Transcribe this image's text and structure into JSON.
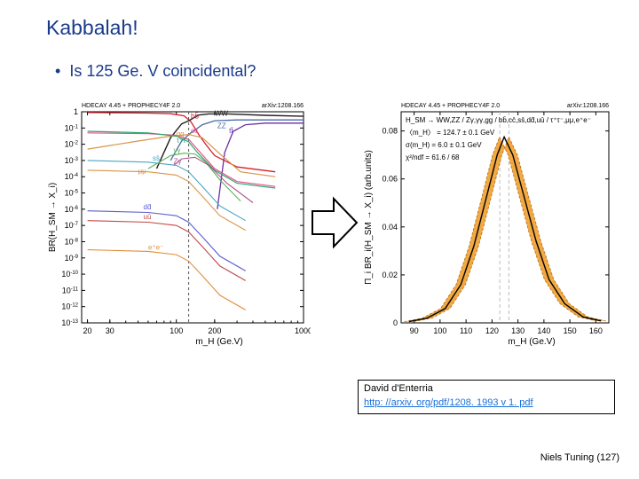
{
  "slide": {
    "title": "Kabbalah!",
    "bullet": "Is 125 Ge. V coincidental?",
    "footer_author": "Niels Tuning",
    "footer_page": "(127)"
  },
  "citation": {
    "name": "David d'Enterria",
    "link": "http: //arxiv. org/pdf/1208. 1993 v 1. pdf"
  },
  "left_chart": {
    "type": "line-log-log",
    "header_left": "HDECAY 4.45 + PROPHECY4F 2.0",
    "header_right": "arXiv:1208.166",
    "x_label": "m_H (Ge.V)",
    "y_label": "BR(H_SM → X_i)",
    "x_ticks": [
      20,
      30,
      100,
      200,
      1000
    ],
    "y_exp_ticks": [
      -13,
      -12,
      -11,
      -10,
      -9,
      -8,
      -7,
      -6,
      -5,
      -4,
      -3,
      -2,
      -1,
      0
    ],
    "xlim": [
      18,
      1000
    ],
    "ylim_exp": [
      -13,
      0
    ],
    "vline_dashed_x": 125,
    "series_labels": [
      {
        "label": "bb̄",
        "color": "#d81e2c",
        "x": 130,
        "y_exp": -0.4
      },
      {
        "label": "WW",
        "color": "#222222",
        "x": 200,
        "y_exp": -0.25
      },
      {
        "label": "tt̄",
        "color": "#6a2fa3",
        "x": 260,
        "y_exp": -1.3
      },
      {
        "label": "ZZ",
        "color": "#4a6aa8",
        "x": 210,
        "y_exp": -1.0
      },
      {
        "label": "cc̄",
        "color": "#e4508f",
        "x": 130,
        "y_exp": -1.3
      },
      {
        "label": "gg",
        "color": "#d8954a",
        "x": 100,
        "y_exp": -1.5
      },
      {
        "label": "τ⁺τ⁻",
        "color": "#2aa86a",
        "x": 100,
        "y_exp": -1.9
      },
      {
        "label": "ss̄",
        "color": "#4aa6c0",
        "x": 65,
        "y_exp": -3.0
      },
      {
        "label": "γγ",
        "color": "#59b259",
        "x": 95,
        "y_exp": -2.5
      },
      {
        "label": "μμ",
        "color": "#d8954a",
        "x": 50,
        "y_exp": -3.8
      },
      {
        "label": "Zγ",
        "color": "#aa5590",
        "x": 95,
        "y_exp": -3.2
      },
      {
        "label": "dd̄",
        "color": "#5c5cd0",
        "x": 55,
        "y_exp": -6.0
      },
      {
        "label": "uū",
        "color": "#c04a4a",
        "x": 55,
        "y_exp": -6.6
      },
      {
        "label": "e⁺e⁻",
        "color": "#e08f3a",
        "x": 60,
        "y_exp": -8.5
      }
    ],
    "series": [
      {
        "color": "#d81e2c",
        "width": 1.3,
        "pts": [
          [
            20,
            -0.05
          ],
          [
            60,
            -0.08
          ],
          [
            90,
            -0.12
          ],
          [
            115,
            -0.25
          ],
          [
            130,
            -0.6
          ],
          [
            150,
            -1.4
          ],
          [
            170,
            -2.0
          ],
          [
            200,
            -2.7
          ],
          [
            300,
            -3.4
          ],
          [
            600,
            -3.7
          ]
        ]
      },
      {
        "color": "#222222",
        "width": 1.4,
        "pts": [
          [
            70,
            -3.5
          ],
          [
            90,
            -1.6
          ],
          [
            110,
            -0.75
          ],
          [
            125,
            -0.55
          ],
          [
            150,
            -0.2
          ],
          [
            180,
            -0.13
          ],
          [
            250,
            -0.13
          ],
          [
            500,
            -0.22
          ],
          [
            1000,
            -0.28
          ]
        ]
      },
      {
        "color": "#4a6aa8",
        "width": 1.3,
        "pts": [
          [
            90,
            -3.0
          ],
          [
            110,
            -1.8
          ],
          [
            130,
            -1.3
          ],
          [
            160,
            -0.8
          ],
          [
            200,
            -0.55
          ],
          [
            300,
            -0.5
          ],
          [
            600,
            -0.5
          ],
          [
            1000,
            -0.5
          ]
        ]
      },
      {
        "color": "#6a2fa3",
        "width": 1.3,
        "pts": [
          [
            210,
            -6.0
          ],
          [
            240,
            -2.5
          ],
          [
            280,
            -1.2
          ],
          [
            350,
            -0.8
          ],
          [
            500,
            -0.7
          ],
          [
            1000,
            -0.7
          ]
        ]
      },
      {
        "color": "#e4508f",
        "width": 1.2,
        "pts": [
          [
            20,
            -1.3
          ],
          [
            60,
            -1.35
          ],
          [
            100,
            -1.45
          ],
          [
            125,
            -1.7
          ],
          [
            150,
            -2.4
          ],
          [
            200,
            -3.5
          ],
          [
            300,
            -4.3
          ],
          [
            600,
            -4.6
          ]
        ]
      },
      {
        "color": "#d8954a",
        "width": 1.2,
        "pts": [
          [
            20,
            -2.3
          ],
          [
            50,
            -1.8
          ],
          [
            90,
            -1.5
          ],
          [
            125,
            -1.4
          ],
          [
            160,
            -1.6
          ],
          [
            220,
            -2.6
          ],
          [
            320,
            -3.7
          ],
          [
            600,
            -4.0
          ]
        ]
      },
      {
        "color": "#2aa86a",
        "width": 1.2,
        "pts": [
          [
            20,
            -1.2
          ],
          [
            60,
            -1.3
          ],
          [
            100,
            -1.5
          ],
          [
            125,
            -1.85
          ],
          [
            150,
            -2.6
          ],
          [
            200,
            -3.6
          ],
          [
            300,
            -4.4
          ],
          [
            600,
            -4.7
          ]
        ]
      },
      {
        "color": "#59b259",
        "width": 1.1,
        "pts": [
          [
            60,
            -3.5
          ],
          [
            90,
            -2.7
          ],
          [
            115,
            -2.55
          ],
          [
            140,
            -2.6
          ],
          [
            170,
            -3.1
          ],
          [
            220,
            -4.2
          ],
          [
            320,
            -5.5
          ]
        ]
      },
      {
        "color": "#aa5590",
        "width": 1.1,
        "pts": [
          [
            95,
            -3.3
          ],
          [
            110,
            -2.9
          ],
          [
            140,
            -2.8
          ],
          [
            180,
            -3.3
          ],
          [
            250,
            -4.4
          ],
          [
            400,
            -5.6
          ]
        ]
      },
      {
        "color": "#4aa6c0",
        "width": 1.1,
        "pts": [
          [
            20,
            -3.0
          ],
          [
            60,
            -3.1
          ],
          [
            100,
            -3.3
          ],
          [
            125,
            -3.7
          ],
          [
            160,
            -4.6
          ],
          [
            220,
            -5.8
          ],
          [
            350,
            -6.7
          ]
        ]
      },
      {
        "color": "#d8954a",
        "width": 1.1,
        "pts": [
          [
            20,
            -3.6
          ],
          [
            60,
            -3.7
          ],
          [
            100,
            -3.9
          ],
          [
            125,
            -4.3
          ],
          [
            160,
            -5.2
          ],
          [
            220,
            -6.4
          ],
          [
            350,
            -7.3
          ]
        ]
      },
      {
        "color": "#5c5cd0",
        "width": 1.1,
        "pts": [
          [
            20,
            -6.1
          ],
          [
            60,
            -6.2
          ],
          [
            100,
            -6.4
          ],
          [
            125,
            -6.8
          ],
          [
            160,
            -7.7
          ],
          [
            220,
            -8.9
          ],
          [
            350,
            -9.8
          ]
        ]
      },
      {
        "color": "#c04a4a",
        "width": 1.1,
        "pts": [
          [
            20,
            -6.7
          ],
          [
            60,
            -6.8
          ],
          [
            100,
            -7.0
          ],
          [
            125,
            -7.4
          ],
          [
            160,
            -8.3
          ],
          [
            220,
            -9.5
          ],
          [
            350,
            -10.4
          ]
        ]
      },
      {
        "color": "#e08f3a",
        "width": 1.1,
        "pts": [
          [
            20,
            -8.5
          ],
          [
            60,
            -8.6
          ],
          [
            100,
            -8.8
          ],
          [
            125,
            -9.2
          ],
          [
            160,
            -10.1
          ],
          [
            220,
            -11.3
          ],
          [
            350,
            -12.2
          ]
        ]
      }
    ],
    "plot_bg": "#ffffff",
    "axis_color": "#000000"
  },
  "right_chart": {
    "type": "line",
    "header_left": "HDECAY 4.45 + PROPHECY4F 2.0",
    "header_right": "arXiv:1208.166",
    "x_label": "m_H (Ge.V)",
    "y_label": "Π_i BR_i(H_SM → X_i) (arb.units)",
    "x_ticks": [
      90,
      100,
      110,
      120,
      130,
      140,
      150,
      160
    ],
    "y_ticks": [
      0,
      0.02,
      0.04,
      0.06,
      0.08
    ],
    "xlim": [
      85,
      165
    ],
    "ylim": [
      0,
      0.088
    ],
    "vlines_grey_x": [
      123,
      126.5
    ],
    "legend_lines": [
      "H_SM → WW,ZZ / Zγ,γγ,gg / bb̄,cc̄,ss̄,dd̄,uū / τ⁺τ⁻,μμ,e⁺e⁻",
      "〈m_H〉 = 124.7 ± 0.1 GeV",
      "σ(m_H) = 6.0 ± 0.1 GeV",
      "χ²/ndf = 61.6 / 68"
    ],
    "band_color": "#f0a030",
    "curve_color": "#000000",
    "band_half_width": 1.8,
    "curve_pts": [
      [
        88,
        0.0005
      ],
      [
        95,
        0.002
      ],
      [
        102,
        0.006
      ],
      [
        108,
        0.016
      ],
      [
        113,
        0.032
      ],
      [
        118,
        0.053
      ],
      [
        122,
        0.07
      ],
      [
        124.7,
        0.0775
      ],
      [
        128,
        0.07
      ],
      [
        132,
        0.054
      ],
      [
        137,
        0.034
      ],
      [
        142,
        0.018
      ],
      [
        148,
        0.008
      ],
      [
        155,
        0.0025
      ],
      [
        162,
        0.0008
      ]
    ],
    "plot_bg": "#ffffff",
    "axis_color": "#000000"
  },
  "arrow": {
    "stroke": "#000000",
    "fill": "#ffffff",
    "stroke_width": 2
  }
}
